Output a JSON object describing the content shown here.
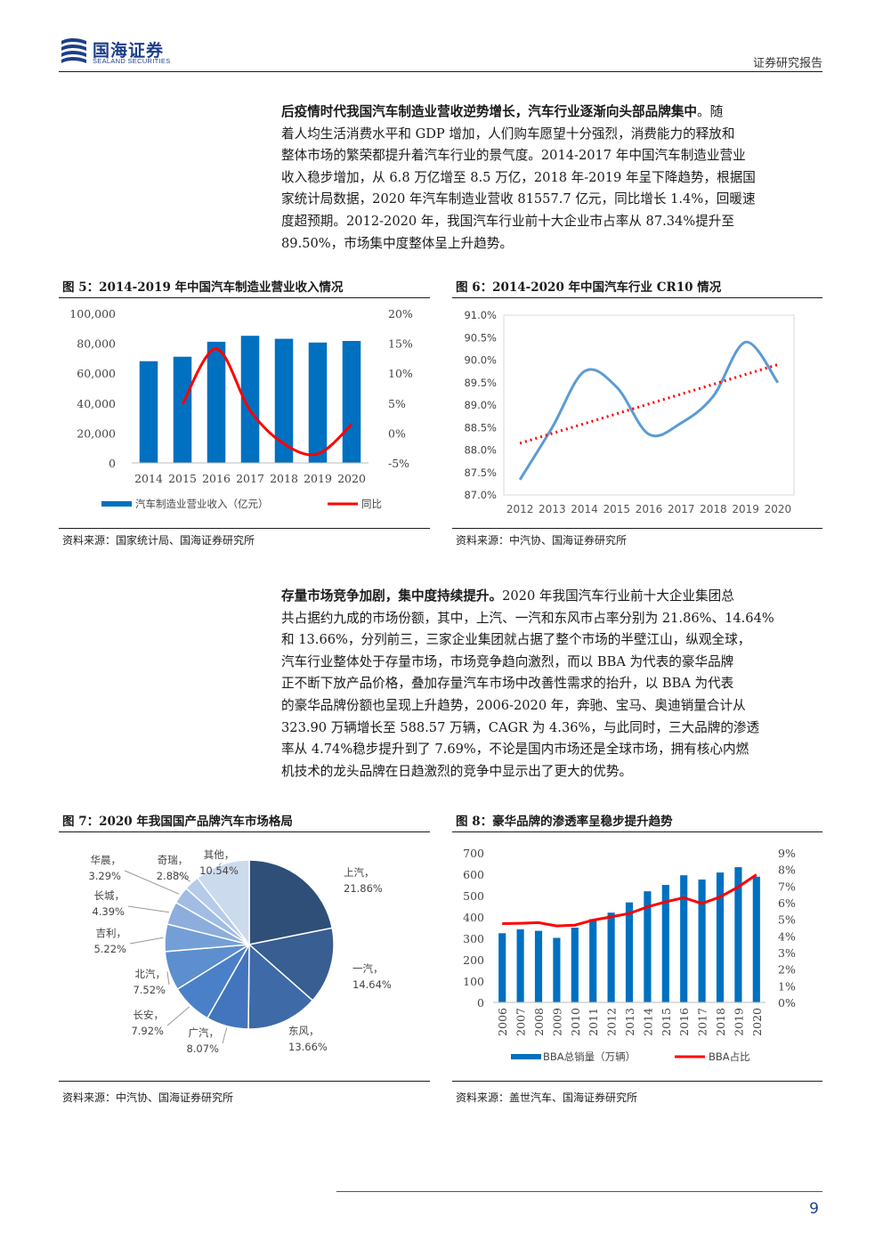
{
  "header": {
    "logo_cn": "国海证券",
    "logo_en": "SEALAND SECURITIES",
    "report_type": "证券研究报告"
  },
  "para1": {
    "bold": "后疫情时代我国汽车制造业营收逆势增长，汽车行业逐渐向头部品牌集中",
    "lines": [
      "着人均生活消费水平和 GDP 增加，人们购车愿望十分强烈，消费能力的释放和",
      "整体市场的繁荣都提升着汽车行业的景气度。2014-2017 年中国汽车制造业营业",
      "收入稳步增加，从 6.8 万亿增至 8.5 万亿，2018 年-2019 年呈下降趋势，根据国",
      "家统计局数据，2020 年汽车制造业营收 81557.7 亿元，同比增长 1.4%，回暖速",
      "度超预期。2012-2020 年，我国汽车行业前十大企业市占率从 87.34%提升至",
      "89.50%，市场集中度整体呈上升趋势。"
    ],
    "first_tail": "。随"
  },
  "para2": {
    "bold": "存量市场竞争加剧，集中度持续提升。",
    "first_tail": "2020 年我国汽车行业前十大企业集团总",
    "lines": [
      "共占据约九成的市场份额，其中，上汽、一汽和东风市占率分别为 21.86%、14.64%",
      "和 13.66%，分列前三，三家企业集团就占据了整个市场的半壁江山，纵观全球，",
      "汽车行业整体处于存量市场，市场竞争趋向激烈，而以 BBA 为代表的豪华品牌",
      "正不断下放产品价格，叠加存量汽车市场中改善性需求的抬升，以 BBA 为代表",
      "的豪华品牌份额也呈现上升趋势，2006-2020 年，奔驰、宝马、奥迪销量合计从",
      "323.90 万辆增长至 588.57 万辆，CAGR 为 4.36%，与此同时，三大品牌的渗透",
      "率从 4.74%稳步提升到了 7.69%，不论是国内市场还是全球市场，拥有核心内燃",
      "机技术的龙头品牌在日趋激烈的竞争中显示出了更大的优势。"
    ]
  },
  "fig5": {
    "title": "图 5：2014-2019 年中国汽车制造业营业收入情况",
    "source": "资料来源：国家统计局、国海证券研究所"
  },
  "fig6": {
    "title": "图 6：2014-2020 年中国汽车行业 CR10 情况",
    "source": "资料来源：中汽协、国海证券研究所"
  },
  "fig7": {
    "title": "图 7：2020 年我国国产品牌汽车市场格局",
    "source": "资料来源：中汽协、国海证券研究所"
  },
  "fig8": {
    "title": "图 8：豪华品牌的渗透率呈稳步提升趋势",
    "source": "资料来源：盖世汽车、国海证券研究所"
  },
  "footer": {
    "page": "9"
  },
  "chart_data": [
    {
      "type": "bar",
      "categories": [
        "2014",
        "2015",
        "2016",
        "2017",
        "2018",
        "2019",
        "2020"
      ],
      "series": [
        {
          "name": "汽车制造业营业收入（亿元）",
          "values": [
            68000,
            71000,
            81000,
            85000,
            83000,
            80500,
            81558
          ],
          "axis": "left",
          "color": "#0070c0"
        },
        {
          "name": "同比",
          "type": "line",
          "values": [
            null,
            4.8,
            14.1,
            3.8,
            -1.8,
            -3.5,
            1.4
          ],
          "axis": "right",
          "color": "#ff0000"
        }
      ],
      "y_ticks": [
        "0",
        "20,000",
        "40,000",
        "60,000",
        "80,000",
        "100,000"
      ],
      "y2_ticks": [
        "-5%",
        "0%",
        "5%",
        "10%",
        "15%",
        "20%"
      ],
      "ylim": [
        0,
        100000
      ],
      "y2lim": [
        -5,
        20
      ],
      "legend": "bottom"
    },
    {
      "type": "line",
      "x": [
        "2012",
        "2013",
        "2014",
        "2015",
        "2016",
        "2017",
        "2018",
        "2019",
        "2020"
      ],
      "series": [
        {
          "name": "CR10",
          "values": [
            87.34,
            88.5,
            89.75,
            89.4,
            88.35,
            88.6,
            89.2,
            90.4,
            89.5
          ],
          "color": "#5b9bd5",
          "smooth": true
        },
        {
          "name": "trend",
          "values": [
            88.15,
            88.37,
            88.59,
            88.81,
            89.03,
            89.25,
            89.47,
            89.69,
            89.9
          ],
          "color": "#ff0000",
          "dotted": true
        }
      ],
      "y_ticks": [
        "87.0%",
        "87.5%",
        "88.0%",
        "88.5%",
        "89.0%",
        "89.5%",
        "90.0%",
        "90.5%",
        "91.0%"
      ],
      "ylim": [
        87.0,
        91.0
      ]
    },
    {
      "type": "pie",
      "slices": [
        {
          "label": "上汽",
          "pct": "21.86%",
          "value": 21.86,
          "color": "#2f4f78"
        },
        {
          "label": "一汽",
          "pct": "14.64%",
          "value": 14.64,
          "color": "#385e92"
        },
        {
          "label": "东风",
          "pct": "13.66%",
          "value": 13.66,
          "color": "#3e6aa8"
        },
        {
          "label": "广汽",
          "pct": "8.07%",
          "value": 8.07,
          "color": "#4275bd"
        },
        {
          "label": "长安",
          "pct": "7.92%",
          "value": 7.92,
          "color": "#4a80c8"
        },
        {
          "label": "北汽",
          "pct": "7.52%",
          "value": 7.52,
          "color": "#5d8ecf"
        },
        {
          "label": "吉利",
          "pct": "5.22%",
          "value": 5.22,
          "color": "#749fd6"
        },
        {
          "label": "长城",
          "pct": "4.39%",
          "value": 4.39,
          "color": "#8daedc"
        },
        {
          "label": "华晨",
          "pct": "3.29%",
          "value": 3.29,
          "color": "#a2bde3"
        },
        {
          "label": "奇瑞",
          "pct": "2.88%",
          "value": 2.88,
          "color": "#b6cbe9"
        },
        {
          "label": "其他",
          "pct": "10.54%",
          "value": 10.54,
          "color": "#ccdaee"
        }
      ]
    },
    {
      "type": "bar",
      "categories": [
        "2006",
        "2007",
        "2008",
        "2009",
        "2010",
        "2011",
        "2012",
        "2013",
        "2014",
        "2015",
        "2016",
        "2017",
        "2018",
        "2019",
        "2020"
      ],
      "series": [
        {
          "name": "BBA总销量（万辆）",
          "values": [
            323.9,
            342,
            335,
            302,
            350,
            390,
            420,
            468,
            520,
            550,
            595,
            575,
            608,
            633,
            588.57
          ],
          "axis": "left",
          "color": "#0070c0"
        },
        {
          "name": "BBA占比",
          "type": "line",
          "values": [
            4.74,
            4.76,
            4.8,
            4.6,
            4.65,
            4.95,
            5.15,
            5.35,
            5.75,
            6.05,
            6.3,
            5.95,
            6.35,
            6.95,
            7.69
          ],
          "axis": "right",
          "color": "#ff0000"
        }
      ],
      "y_ticks": [
        "0",
        "100",
        "200",
        "300",
        "400",
        "500",
        "600",
        "700"
      ],
      "y2_ticks": [
        "0%",
        "1%",
        "2%",
        "3%",
        "4%",
        "5%",
        "6%",
        "7%",
        "8%",
        "9%"
      ],
      "ylim": [
        0,
        700
      ],
      "y2lim": [
        0,
        9
      ],
      "legend": "bottom"
    }
  ]
}
